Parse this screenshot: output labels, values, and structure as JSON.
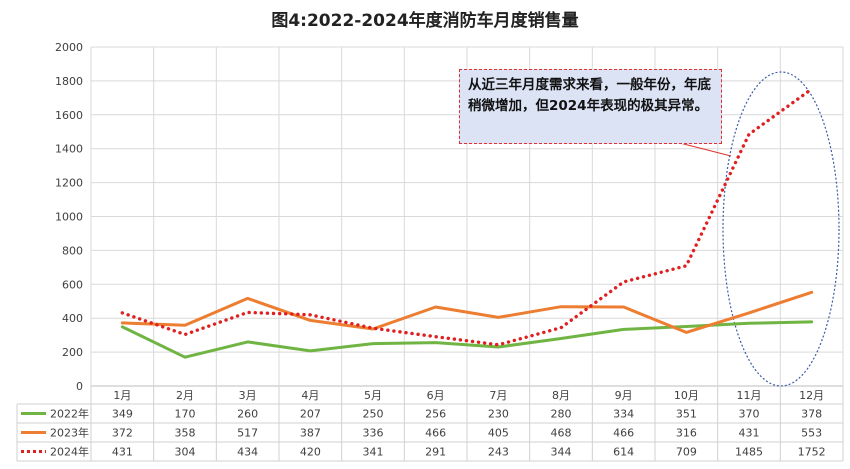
{
  "title": "图4:2022-2024年度消防车月度销售量",
  "annotation": "从近三年月度需求来看，一般年份，年底稍微增加，但2024年表现的极其异常。",
  "chart_data": {
    "type": "line",
    "title": "图4:2022-2024年度消防车月度销售量",
    "categories": [
      "1月",
      "2月",
      "3月",
      "4月",
      "5月",
      "6月",
      "7月",
      "8月",
      "9月",
      "10月",
      "11月",
      "12月"
    ],
    "ylim": [
      0,
      2000
    ],
    "yticks": [
      "0",
      "200",
      "400",
      "600",
      "800",
      "1000",
      "1200",
      "1400",
      "1600",
      "1800",
      "2000"
    ],
    "grid": true,
    "legend": "data-table-left",
    "series": [
      {
        "name": "2022年",
        "color": "#70b544",
        "style": "solid",
        "values": [
          349,
          170,
          260,
          207,
          250,
          256,
          230,
          280,
          334,
          351,
          370,
          378
        ]
      },
      {
        "name": "2023年",
        "color": "#ed7d31",
        "style": "solid",
        "values": [
          372,
          358,
          517,
          387,
          336,
          466,
          405,
          468,
          466,
          316,
          431,
          553
        ]
      },
      {
        "name": "2024年",
        "color": "#e02020",
        "style": "dotted",
        "values": [
          431,
          304,
          434,
          420,
          341,
          291,
          243,
          344,
          614,
          709,
          1485,
          1752
        ]
      }
    ]
  }
}
